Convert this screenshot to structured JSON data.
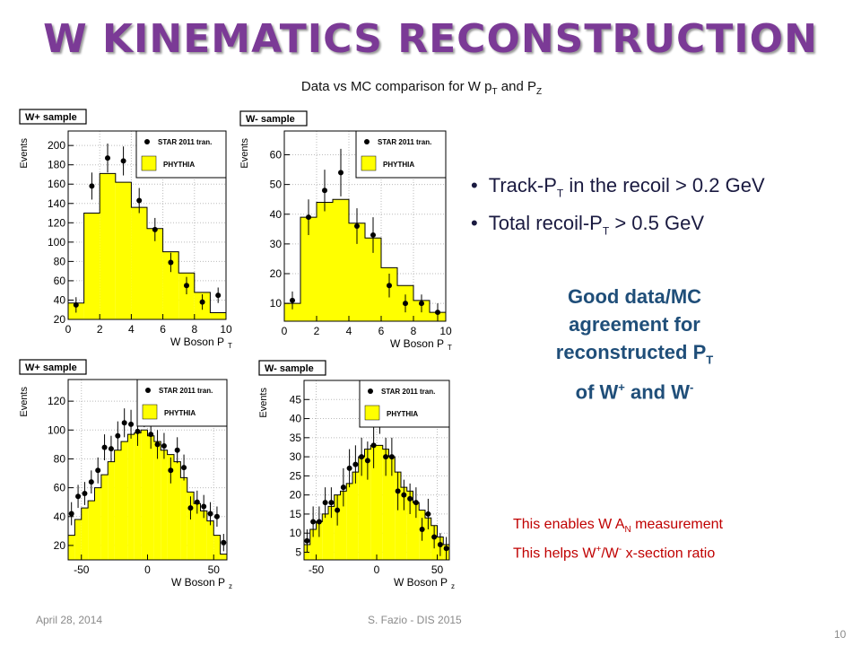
{
  "slide": {
    "title": "W KINEMATICS RECONSTRUCTION",
    "subtitle_pre": "Data vs MC comparison for  W p",
    "subtitle_sub1": "T",
    "subtitle_mid": " and P",
    "subtitle_sub2": "Z",
    "bullets": [
      {
        "pre": "Track-P",
        "sub": "T",
        "post": " in the recoil > 0.2 GeV"
      },
      {
        "pre": "Total recoil-P",
        "sub": "T",
        "post": " > 0.5 GeV"
      }
    ],
    "good": {
      "l1": "Good data/MC",
      "l2": "agreement for",
      "l3a": "reconstructed P",
      "l3sub": "T",
      "l4a": "of W",
      "l4sup1": "+",
      "l4b": " and W",
      "l4sup2": "-"
    },
    "note": {
      "l1a": "This enables  W A",
      "l1sub": "N",
      "l1b": " measurement",
      "l2a": "This helps W",
      "l2sup1": "+",
      "l2b": "/W",
      "l2sup2": "-",
      "l2c": " x-section ratio"
    },
    "footer_left": "April 28, 2014",
    "footer_center": "S. Fazio - DIS 2015",
    "page_number": "10",
    "colors": {
      "title": "#7b3a96",
      "mc_fill": "#ffff00",
      "note": "#c00000",
      "good": "#1f4e79"
    }
  },
  "chart_data": [
    {
      "type": "histogram",
      "sample_label": "W+ sample",
      "ylabel": "Events",
      "xlabel": "W Boson P",
      "xlabel_sub": "T",
      "xlim": [
        0,
        10
      ],
      "ylim": [
        20,
        215
      ],
      "xticks": [
        0,
        2,
        4,
        6,
        8,
        10
      ],
      "yticks": [
        20,
        40,
        60,
        80,
        100,
        120,
        140,
        160,
        180,
        200
      ],
      "legend": {
        "data": "STAR 2011 tran.",
        "mc": "PHYTHIA"
      },
      "bin_edges": [
        0,
        1,
        2,
        3,
        4,
        5,
        6,
        7,
        8,
        9,
        10
      ],
      "mc": [
        37,
        130,
        171,
        162,
        136,
        114,
        90,
        68,
        48,
        27
      ],
      "data": [
        {
          "x": 0.5,
          "y": 35,
          "e": 8
        },
        {
          "x": 1.5,
          "y": 158,
          "e": 14
        },
        {
          "x": 2.5,
          "y": 187,
          "e": 15
        },
        {
          "x": 3.5,
          "y": 184,
          "e": 15
        },
        {
          "x": 4.5,
          "y": 143,
          "e": 13
        },
        {
          "x": 5.5,
          "y": 113,
          "e": 12
        },
        {
          "x": 6.5,
          "y": 79,
          "e": 10
        },
        {
          "x": 7.5,
          "y": 55,
          "e": 9
        },
        {
          "x": 8.5,
          "y": 38,
          "e": 8
        },
        {
          "x": 9.5,
          "y": 45,
          "e": 8
        }
      ]
    },
    {
      "type": "histogram",
      "sample_label": "W- sample",
      "ylabel": "Events",
      "xlabel": "W Boson P",
      "xlabel_sub": "T",
      "xlim": [
        0,
        10
      ],
      "ylim": [
        4,
        68
      ],
      "xticks": [
        0,
        2,
        4,
        6,
        8,
        10
      ],
      "yticks": [
        10,
        20,
        30,
        40,
        50,
        60
      ],
      "legend": {
        "data": "STAR 2011 tran.",
        "mc": "PHYTHIA"
      },
      "bin_edges": [
        0,
        1,
        2,
        3,
        4,
        5,
        6,
        7,
        8,
        9,
        10
      ],
      "mc": [
        10,
        39,
        44,
        45,
        37,
        32,
        22,
        16,
        11,
        7
      ],
      "data": [
        {
          "x": 0.5,
          "y": 11,
          "e": 3
        },
        {
          "x": 1.5,
          "y": 39,
          "e": 6
        },
        {
          "x": 2.5,
          "y": 48,
          "e": 7
        },
        {
          "x": 3.5,
          "y": 54,
          "e": 8
        },
        {
          "x": 4.5,
          "y": 36,
          "e": 6
        },
        {
          "x": 5.5,
          "y": 33,
          "e": 6
        },
        {
          "x": 6.5,
          "y": 16,
          "e": 4
        },
        {
          "x": 7.5,
          "y": 10,
          "e": 3
        },
        {
          "x": 8.5,
          "y": 10,
          "e": 3
        },
        {
          "x": 9.5,
          "y": 7,
          "e": 3
        }
      ]
    },
    {
      "type": "histogram",
      "sample_label": "W+ sample",
      "ylabel": "Events",
      "xlabel": "W Boson P",
      "xlabel_sub": "z",
      "xlim": [
        -60,
        60
      ],
      "ylim": [
        10,
        135
      ],
      "xticks": [
        -50,
        0,
        50
      ],
      "yticks": [
        20,
        40,
        60,
        80,
        100,
        120
      ],
      "legend": {
        "data": "STAR 2011 tran.",
        "mc": "PHYTHIA"
      },
      "bin_edges": [
        -60,
        -55,
        -50,
        -45,
        -40,
        -35,
        -30,
        -25,
        -20,
        -15,
        -10,
        -5,
        0,
        5,
        10,
        15,
        20,
        25,
        30,
        35,
        40,
        45,
        50,
        55,
        60
      ],
      "mc": [
        27,
        38,
        46,
        51,
        60,
        69,
        78,
        86,
        92,
        97,
        98,
        100,
        96,
        92,
        86,
        83,
        78,
        67,
        57,
        49,
        44,
        37,
        27,
        14
      ],
      "data": [
        {
          "x": -57.5,
          "y": 42,
          "e": 8
        },
        {
          "x": -52.5,
          "y": 54,
          "e": 8
        },
        {
          "x": -47.5,
          "y": 56,
          "e": 8
        },
        {
          "x": -42.5,
          "y": 64,
          "e": 8
        },
        {
          "x": -37.5,
          "y": 72,
          "e": 9
        },
        {
          "x": -32.5,
          "y": 88,
          "e": 9
        },
        {
          "x": -27.5,
          "y": 87,
          "e": 9
        },
        {
          "x": -22.5,
          "y": 96,
          "e": 10
        },
        {
          "x": -17.5,
          "y": 105,
          "e": 10
        },
        {
          "x": -12.5,
          "y": 104,
          "e": 10
        },
        {
          "x": -7.5,
          "y": 99,
          "e": 10
        },
        {
          "x": -2.5,
          "y": 113,
          "e": 11
        },
        {
          "x": 2.5,
          "y": 97,
          "e": 10
        },
        {
          "x": 7.5,
          "y": 90,
          "e": 10
        },
        {
          "x": 12.5,
          "y": 89,
          "e": 9
        },
        {
          "x": 17.5,
          "y": 72,
          "e": 9
        },
        {
          "x": 22.5,
          "y": 86,
          "e": 9
        },
        {
          "x": 27.5,
          "y": 74,
          "e": 9
        },
        {
          "x": 32.5,
          "y": 46,
          "e": 8
        },
        {
          "x": 37.5,
          "y": 50,
          "e": 8
        },
        {
          "x": 42.5,
          "y": 47,
          "e": 8
        },
        {
          "x": 47.5,
          "y": 42,
          "e": 8
        },
        {
          "x": 52.5,
          "y": 40,
          "e": 7
        },
        {
          "x": 57.5,
          "y": 22,
          "e": 6
        }
      ]
    },
    {
      "type": "histogram",
      "sample_label": "W- sample",
      "ylabel": "Events",
      "xlabel": "W Boson P",
      "xlabel_sub": "z",
      "xlim": [
        -60,
        60
      ],
      "ylim": [
        3,
        50
      ],
      "xticks": [
        -50,
        0,
        50
      ],
      "yticks": [
        5,
        10,
        15,
        20,
        25,
        30,
        35,
        40,
        45
      ],
      "legend": {
        "data": "STAR 2011 tran.",
        "mc": "PHYTHIA"
      },
      "bin_edges": [
        -60,
        -55,
        -50,
        -45,
        -40,
        -35,
        -30,
        -25,
        -20,
        -15,
        -10,
        -5,
        0,
        5,
        10,
        15,
        20,
        25,
        30,
        35,
        40,
        45,
        50,
        55,
        60
      ],
      "mc": [
        7,
        11,
        13,
        15,
        17,
        20,
        21,
        23,
        26,
        30,
        32,
        33,
        33,
        32,
        30,
        26,
        22,
        21,
        18,
        16,
        14,
        12,
        9,
        7
      ],
      "data": [
        {
          "x": -57.5,
          "y": 8,
          "e": 3
        },
        {
          "x": -52.5,
          "y": 13,
          "e": 4
        },
        {
          "x": -47.5,
          "y": 13,
          "e": 4
        },
        {
          "x": -42.5,
          "y": 18,
          "e": 4
        },
        {
          "x": -37.5,
          "y": 18,
          "e": 4
        },
        {
          "x": -32.5,
          "y": 16,
          "e": 4
        },
        {
          "x": -27.5,
          "y": 22,
          "e": 5
        },
        {
          "x": -22.5,
          "y": 27,
          "e": 5
        },
        {
          "x": -17.5,
          "y": 28,
          "e": 5
        },
        {
          "x": -12.5,
          "y": 30,
          "e": 5
        },
        {
          "x": -7.5,
          "y": 29,
          "e": 5
        },
        {
          "x": -2.5,
          "y": 33,
          "e": 6
        },
        {
          "x": 2.5,
          "y": 42,
          "e": 6
        },
        {
          "x": 7.5,
          "y": 30,
          "e": 5
        },
        {
          "x": 12.5,
          "y": 30,
          "e": 5
        },
        {
          "x": 17.5,
          "y": 21,
          "e": 5
        },
        {
          "x": 22.5,
          "y": 20,
          "e": 4
        },
        {
          "x": 27.5,
          "y": 19,
          "e": 4
        },
        {
          "x": 32.5,
          "y": 18,
          "e": 4
        },
        {
          "x": 37.5,
          "y": 11,
          "e": 3
        },
        {
          "x": 42.5,
          "y": 15,
          "e": 4
        },
        {
          "x": 47.5,
          "y": 9,
          "e": 3
        },
        {
          "x": 52.5,
          "y": 7,
          "e": 3
        },
        {
          "x": 57.5,
          "y": 6,
          "e": 3
        }
      ]
    }
  ]
}
